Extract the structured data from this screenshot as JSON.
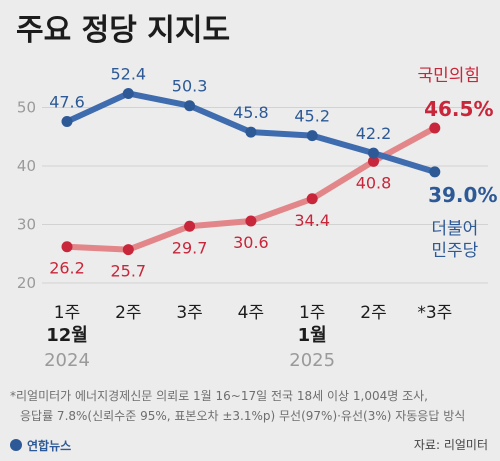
{
  "title": "주요 정당 지지도",
  "chart_data": {
    "type": "line",
    "categories": [
      "1주",
      "2주",
      "3주",
      "4주",
      "1주",
      "2주",
      "*3주"
    ],
    "month_labels": [
      {
        "index": 0,
        "label": "12월"
      },
      {
        "index": 4,
        "label": "1월"
      }
    ],
    "year_labels": [
      {
        "index": 0,
        "label": "2024"
      },
      {
        "index": 4,
        "label": "2025"
      }
    ],
    "yticks": [
      20,
      30,
      40,
      50
    ],
    "ylim": [
      20,
      55
    ],
    "grid": true,
    "series": [
      {
        "name": "더불어민주당",
        "name_lines": [
          "더불어",
          "민주당"
        ],
        "color": "#3f6cae",
        "values": [
          47.6,
          52.4,
          50.3,
          45.8,
          45.2,
          42.2,
          39.0
        ],
        "labels": [
          "47.6",
          "52.4",
          "50.3",
          "45.8",
          "45.2",
          "42.2",
          "39.0%"
        ]
      },
      {
        "name": "국민의힘",
        "name_lines": [
          "국민의힘"
        ],
        "color": "#e38689",
        "values": [
          26.2,
          25.7,
          29.7,
          30.6,
          34.4,
          40.8,
          46.5
        ],
        "labels": [
          "26.2",
          "25.7",
          "29.7",
          "30.6",
          "34.4",
          "40.8",
          "46.5%"
        ]
      }
    ]
  },
  "note_lines": [
    "*리얼미터가 에너지경제신문 의뢰로 1월 16~17일 전국 18세 이상 1,004명 조사,",
    "응답률 7.8%(신뢰수준 95%, 표본오차 ±3.1%p) 무선(97%)·유선(3%) 자동응답 방식"
  ],
  "source": "자료: 리얼미터",
  "logo": "연합뉴스"
}
